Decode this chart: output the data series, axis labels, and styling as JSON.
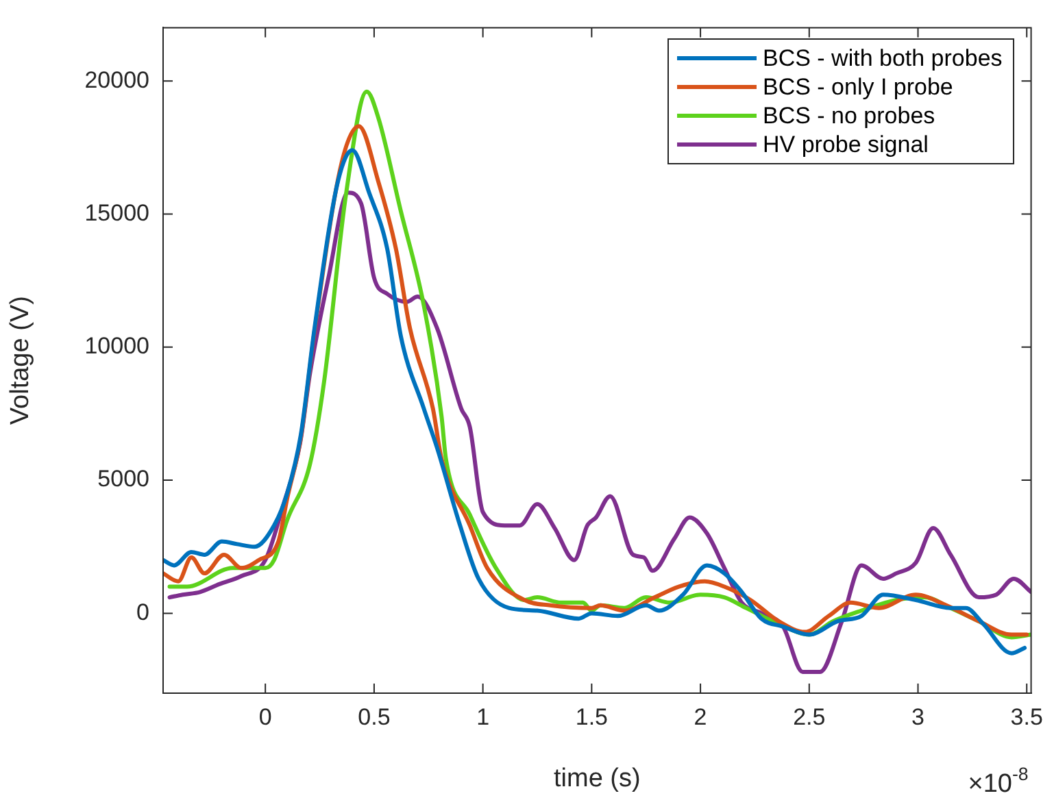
{
  "chart_data": {
    "type": "line",
    "xlabel": "time (s)",
    "ylabel": "Voltage (V)",
    "xlim": [
      -0.47,
      3.52
    ],
    "xticks": [
      0,
      0.5,
      1,
      1.5,
      2,
      2.5,
      3,
      3.5
    ],
    "ylim": [
      -3000,
      22000
    ],
    "yticks": [
      0,
      5000,
      10000,
      15000,
      20000
    ],
    "grid": false,
    "legend": "top right",
    "marker": "none",
    "line_style": "solid",
    "annotations": [
      "×10$^{-8}$"
    ],
    "series": [
      {
        "name": "BCS - with both probes",
        "color": "#0072bd",
        "x": [
          -0.47,
          -0.42,
          -0.34,
          -0.28,
          -0.2,
          -0.13,
          -0.05,
          0.04,
          0.1,
          0.163,
          0.226,
          0.33,
          0.4,
          0.477,
          0.56,
          0.623,
          0.728,
          0.79,
          0.895,
          0.98,
          1.12,
          1.25,
          1.44,
          1.5,
          1.62,
          1.75,
          1.81,
          1.92,
          2.03,
          2.11,
          2.19,
          2.28,
          2.38,
          2.5,
          2.63,
          2.74,
          2.84,
          2.99,
          3.15,
          3.22,
          3.3,
          3.43,
          3.49
        ],
        "values": [
          2000,
          1800,
          2300,
          2200,
          2700,
          2600,
          2500,
          3300,
          4500,
          6700,
          10700,
          16100,
          17400,
          15800,
          13700,
          10400,
          7700,
          6200,
          3300,
          1300,
          200,
          100,
          -200,
          0,
          -100,
          300,
          100,
          700,
          1800,
          1500,
          800,
          -200,
          -500,
          -800,
          -300,
          -100,
          700,
          500,
          200,
          200,
          -400,
          -1500,
          -1300
        ]
      },
      {
        "name": "BCS - only I probe",
        "color": "#d95319",
        "x": [
          -0.47,
          -0.4,
          -0.34,
          -0.28,
          -0.19,
          -0.11,
          -0.03,
          0.06,
          0.1,
          0.163,
          0.226,
          0.35,
          0.43,
          0.52,
          0.6,
          0.665,
          0.77,
          0.81,
          0.94,
          1.02,
          1.19,
          1.31,
          1.5,
          1.54,
          1.65,
          1.79,
          1.9,
          2.02,
          2.11,
          2.23,
          2.36,
          2.48,
          2.59,
          2.69,
          2.82,
          2.99,
          3.13,
          3.28,
          3.43,
          3.5
        ],
        "values": [
          1500,
          1200,
          2100,
          1500,
          2200,
          1700,
          2000,
          2700,
          4300,
          6600,
          10600,
          16900,
          18300,
          16200,
          13700,
          10700,
          7700,
          5800,
          3300,
          1700,
          500,
          300,
          200,
          300,
          100,
          600,
          1000,
          1200,
          1000,
          500,
          -300,
          -700,
          -100,
          400,
          200,
          700,
          300,
          -300,
          -800,
          -800
        ]
      },
      {
        "name": "BCS - no probes",
        "color": "#5dd21c",
        "x": [
          -0.44,
          -0.36,
          -0.15,
          0,
          0.04,
          0.1,
          0.205,
          0.27,
          0.37,
          0.466,
          0.52,
          0.62,
          0.73,
          0.81,
          0.83,
          0.94,
          1.06,
          1.19,
          1.25,
          1.36,
          1.46,
          1.5,
          1.54,
          1.65,
          1.75,
          1.86,
          2,
          2.11,
          2.21,
          2.36,
          2.5,
          2.61,
          2.74,
          2.9,
          3.03,
          3.15,
          3.28,
          3.43,
          3.52
        ],
        "values": [
          1000,
          1000,
          1700,
          1700,
          2000,
          3500,
          5600,
          8700,
          15700,
          19600,
          18600,
          15200,
          11500,
          7400,
          5800,
          3700,
          1700,
          500,
          600,
          400,
          400,
          100,
          300,
          200,
          600,
          400,
          700,
          600,
          200,
          -400,
          -800,
          -300,
          100,
          500,
          600,
          200,
          -300,
          -900,
          -800
        ]
      },
      {
        "name": "HV probe signal",
        "color": "#7e2f8e",
        "x": [
          -0.44,
          -0.38,
          -0.3,
          -0.21,
          -0.11,
          0,
          0.08,
          0.16,
          0.205,
          0.29,
          0.38,
          0.44,
          0.5,
          0.56,
          0.65,
          0.7,
          0.79,
          0.9,
          0.94,
          1,
          1.1,
          1.17,
          1.25,
          1.33,
          1.42,
          1.48,
          1.52,
          1.585,
          1.69,
          1.74,
          1.78,
          1.88,
          1.95,
          2.03,
          2.11,
          2.19,
          2.28,
          2.38,
          2.47,
          2.55,
          2.65,
          2.74,
          2.84,
          2.9,
          2.99,
          3.07,
          3.15,
          3.28,
          3.36,
          3.44,
          3.52
        ],
        "values": [
          600,
          700,
          800,
          1100,
          1400,
          2000,
          4000,
          6400,
          9000,
          12600,
          15800,
          15400,
          12600,
          12000,
          11700,
          11900,
          10700,
          7700,
          7000,
          3800,
          3300,
          3300,
          4100,
          3200,
          2000,
          3300,
          3600,
          4400,
          2200,
          2100,
          1600,
          2800,
          3600,
          3000,
          1700,
          400,
          0,
          -500,
          -2200,
          -2200,
          -300,
          1800,
          1300,
          1500,
          1900,
          3200,
          2200,
          600,
          700,
          1300,
          800
        ]
      }
    ]
  }
}
